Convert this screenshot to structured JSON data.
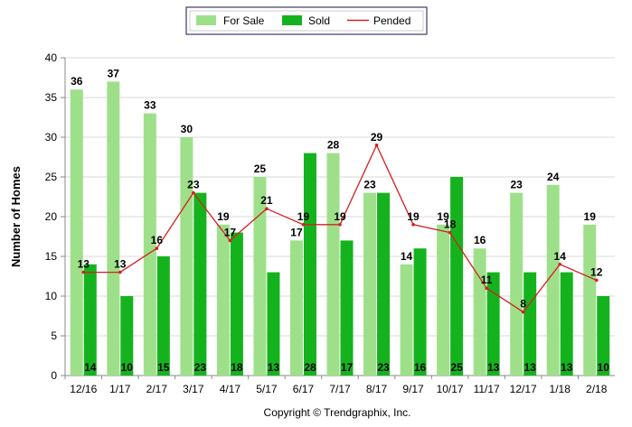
{
  "chart_data": {
    "type": "bar",
    "categories": [
      "12/16",
      "1/17",
      "2/17",
      "3/17",
      "4/17",
      "5/17",
      "6/17",
      "7/17",
      "8/17",
      "9/17",
      "10/17",
      "11/17",
      "12/17",
      "1/18",
      "2/18"
    ],
    "series": [
      {
        "name": "For Sale",
        "type": "bar",
        "color": "#9ee08a",
        "values": [
          36,
          37,
          33,
          30,
          19,
          25,
          17,
          28,
          23,
          14,
          19,
          16,
          23,
          24,
          19
        ]
      },
      {
        "name": "Sold",
        "type": "bar",
        "color": "#14b31e",
        "values": [
          14,
          10,
          15,
          23,
          18,
          13,
          28,
          17,
          23,
          16,
          25,
          13,
          13,
          13,
          10
        ]
      },
      {
        "name": "Pended",
        "type": "line",
        "color": "#d42020",
        "values": [
          13,
          13,
          16,
          23,
          17,
          21,
          19,
          19,
          29,
          19,
          18,
          11,
          8,
          14,
          12
        ]
      }
    ],
    "ylabel": "Number of Homes",
    "xlabel": "",
    "ylim": [
      0,
      40
    ],
    "yticks": [
      0,
      5,
      10,
      15,
      20,
      25,
      30,
      35,
      40
    ],
    "grid": true,
    "legend_position": "top-center"
  },
  "footer": {
    "copyright": "Copyright © Trendgraphix, Inc."
  }
}
